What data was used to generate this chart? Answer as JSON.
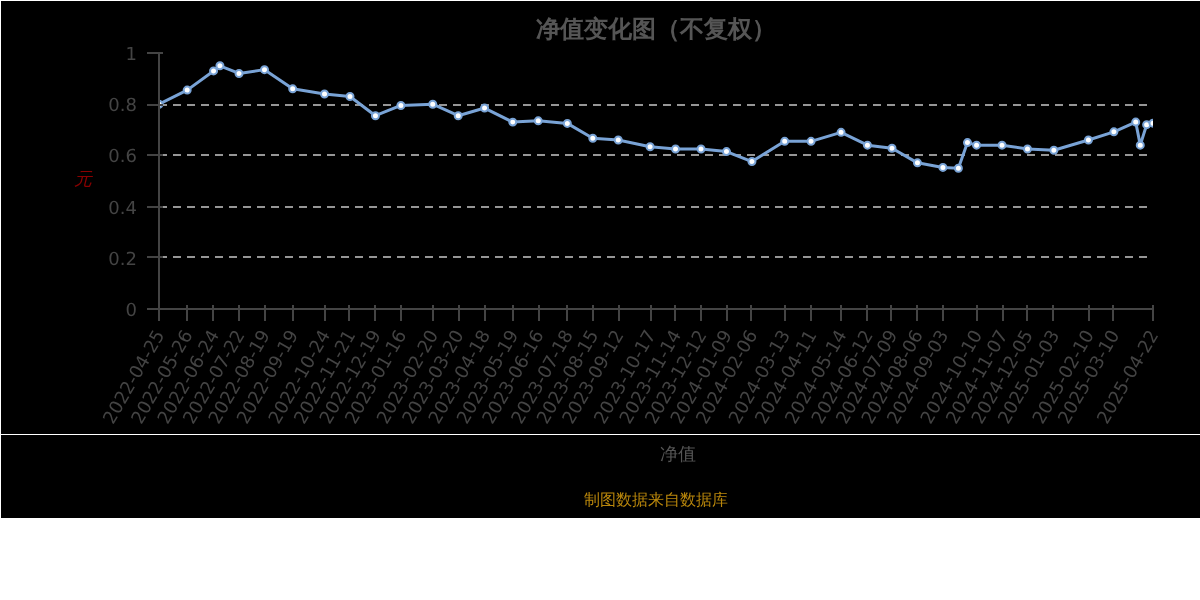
{
  "chart_data": {
    "type": "line",
    "title": "净值变化图（不复权）",
    "ylabel": "元",
    "annotations": [
      "制图数据来自数据库"
    ],
    "x": [
      "2022-04-25",
      "2022-05-26",
      "2022-06-24",
      "2022-07-01",
      "2022-07-22",
      "2022-08-19",
      "2022-09-19",
      "2022-10-24",
      "2022-11-21",
      "2022-12-19",
      "2023-01-16",
      "2023-02-20",
      "2023-03-20",
      "2023-04-18",
      "2023-05-19",
      "2023-06-16",
      "2023-07-18",
      "2023-08-15",
      "2023-09-12",
      "2023-10-17",
      "2023-11-14",
      "2023-12-12",
      "2024-01-09",
      "2024-02-06",
      "2024-03-13",
      "2024-04-11",
      "2024-05-14",
      "2024-06-12",
      "2024-07-09",
      "2024-08-06",
      "2024-09-03",
      "2024-09-20",
      "2024-09-30",
      "2024-10-10",
      "2024-11-07",
      "2024-12-05",
      "2025-01-03",
      "2025-02-10",
      "2025-03-10",
      "2025-04-03",
      "2025-04-08",
      "2025-04-15",
      "2025-04-22"
    ],
    "series": [
      {
        "name": "净值",
        "color": "#79a3d6",
        "values": [
          0.8,
          0.855,
          0.93,
          0.95,
          0.92,
          0.935,
          0.86,
          0.84,
          0.83,
          0.755,
          0.795,
          0.8,
          0.755,
          0.785,
          0.73,
          0.735,
          0.725,
          0.667,
          0.66,
          0.634,
          0.625,
          0.625,
          0.615,
          0.576,
          0.655,
          0.655,
          0.69,
          0.64,
          0.628,
          0.571,
          0.553,
          0.55,
          0.65,
          0.64,
          0.64,
          0.625,
          0.62,
          0.66,
          0.692,
          0.73,
          0.64,
          0.72,
          0.726
        ]
      }
    ],
    "xlim": [
      "2022-04-25",
      "2025-04-22"
    ],
    "xticks": [
      "2022-04-25",
      "2022-05-26",
      "2022-06-24",
      "2022-07-22",
      "2022-08-19",
      "2022-09-19",
      "2022-10-24",
      "2022-11-21",
      "2022-12-19",
      "2023-01-16",
      "2023-02-20",
      "2023-03-20",
      "2023-04-18",
      "2023-05-19",
      "2023-06-16",
      "2023-07-18",
      "2023-08-15",
      "2023-09-12",
      "2023-10-17",
      "2023-11-14",
      "2023-12-12",
      "2024-01-09",
      "2024-02-06",
      "2024-03-13",
      "2024-04-11",
      "2024-05-14",
      "2024-06-12",
      "2024-07-09",
      "2024-08-06",
      "2024-09-03",
      "2024-10-10",
      "2024-11-07",
      "2024-12-05",
      "2025-01-03",
      "2025-02-10",
      "2025-03-10",
      "2025-04-22"
    ],
    "ylim": [
      0,
      1
    ],
    "yticks": [
      0,
      0.2,
      0.4,
      0.6,
      0.8,
      1
    ],
    "grid": "y",
    "legend": "bottom",
    "marker": "circle",
    "line_style": "solid"
  }
}
